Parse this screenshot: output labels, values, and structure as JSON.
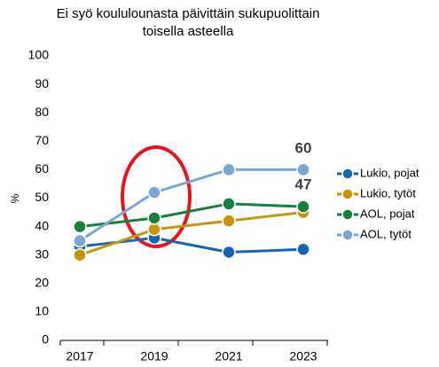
{
  "chart_data": {
    "type": "line",
    "title": [
      "Ei syö koululounasta päivittäin sukupuolittain",
      "toisella asteella"
    ],
    "ylabel": "%",
    "categories": [
      "2017",
      "2019",
      "2021",
      "2023"
    ],
    "series": [
      {
        "name": "Lukio, pojat",
        "color": "#1565b5",
        "values": [
          33,
          36,
          31,
          32
        ]
      },
      {
        "name": "Lukio, tytöt",
        "color": "#c7950d",
        "values": [
          30,
          39,
          42,
          45
        ]
      },
      {
        "name": "AOL, pojat",
        "color": "#17803c",
        "values": [
          40,
          43,
          48,
          47
        ]
      },
      {
        "name": "AOL, tytöt",
        "color": "#7aa6d2",
        "values": [
          35,
          52,
          60,
          60
        ]
      }
    ],
    "annotations": [
      "60",
      "47"
    ],
    "ylim": [
      0,
      100
    ],
    "yticks": [
      0,
      10,
      20,
      30,
      40,
      50,
      60,
      70,
      80,
      90,
      100
    ],
    "grid": false,
    "legend": "right"
  }
}
